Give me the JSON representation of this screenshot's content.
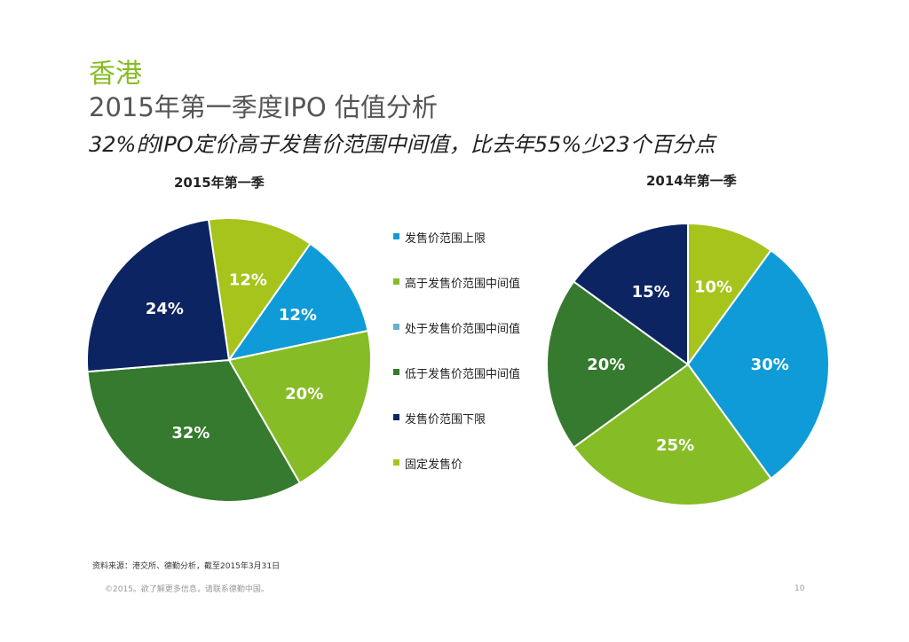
{
  "title": {
    "region": "香港",
    "main": "2015年第一季度IPO 估值分析",
    "subtitle": "32%的IPO定价高于发售价范围中间值，比去年55%少23个百分点"
  },
  "legend": [
    {
      "label": "发售价范围上限",
      "color": "#0f9bd7"
    },
    {
      "label": "高于发售价范围中间值",
      "color": "#86bc25"
    },
    {
      "label": "处于发售价范围中间值",
      "color": "#6aaed6"
    },
    {
      "label": "低于发售价范围中间值",
      "color": "#357a2e"
    },
    {
      "label": "发售价范围下限",
      "color": "#0c2462"
    },
    {
      "label": "固定发售价",
      "color": "#a7c41c"
    }
  ],
  "chart_data": [
    {
      "type": "pie",
      "title": "2015年第一季",
      "slices": [
        {
          "category": "固定发售价",
          "value": 12,
          "label": "12%"
        },
        {
          "category": "发售价范围上限",
          "value": 12,
          "label": "12%"
        },
        {
          "category": "高于发售价范围中间值",
          "value": 20,
          "label": "20%"
        },
        {
          "category": "低于发售价范围中间值",
          "value": 32,
          "label": "32%"
        },
        {
          "category": "发售价范围下限",
          "value": 24,
          "label": "24%"
        }
      ]
    },
    {
      "type": "pie",
      "title": "2014年第一季",
      "slices": [
        {
          "category": "固定发售价",
          "value": 10,
          "label": "10%"
        },
        {
          "category": "发售价范围上限",
          "value": 30,
          "label": "30%"
        },
        {
          "category": "高于发售价范围中间值",
          "value": 25,
          "label": "25%"
        },
        {
          "category": "低于发售价范围中间值",
          "value": 20,
          "label": "20%"
        },
        {
          "category": "发售价范围下限",
          "value": 15,
          "label": "15%"
        }
      ]
    }
  ],
  "source": "资料来源：港交所、德勤分析，截至2015年3月31日",
  "footer": "©2015。欲了解更多信息，请联系德勤中国。",
  "page_number": "10"
}
